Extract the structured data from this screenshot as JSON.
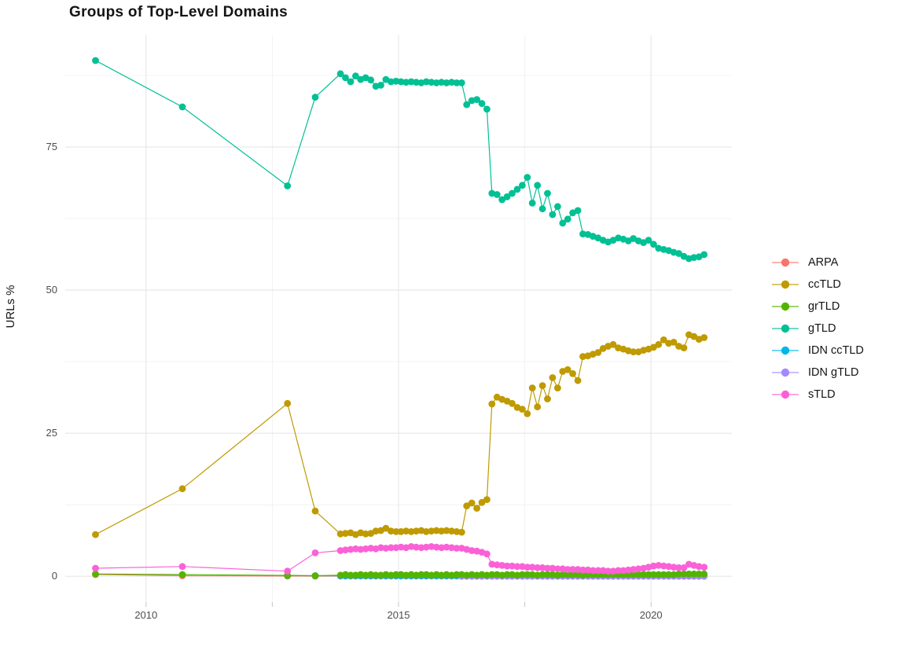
{
  "title": "Groups of Top-Level Domains",
  "chart_data": {
    "type": "line",
    "title": "Groups of Top-Level Domains",
    "xlabel": "",
    "ylabel": "URLs %",
    "grid": true,
    "legend_position": "right",
    "x_domain": [
      2008.4,
      2021.6
    ],
    "y_domain": [
      -4.5,
      94.5
    ],
    "x_ticks_major": [
      2010,
      2015,
      2020
    ],
    "x_tick_labels": [
      "2010",
      "2015",
      "2020"
    ],
    "x_ticks_minor": [
      2012.5,
      2017.5
    ],
    "y_ticks_major": [
      0,
      25,
      50,
      75
    ],
    "y_tick_labels": [
      "0",
      "25",
      "50",
      "75"
    ],
    "y_ticks_minor": [
      12.5,
      37.5,
      62.5,
      87.5
    ],
    "draw_order": [
      "ARPA",
      "IDN ccTLD",
      "IDN gTLD",
      "grTLD",
      "ccTLD",
      "gTLD",
      "sTLD"
    ],
    "series": [
      {
        "label": "ARPA",
        "color": "#F8766D",
        "points": [
          [
            2009.0,
            0.3
          ],
          [
            2010.72,
            0.1
          ],
          [
            2012.8,
            0.05
          ],
          [
            2013.35,
            0.03
          ]
        ],
        "dense": {
          "x_start": 2013.85,
          "x_step": 0.1,
          "values": [
            0.05,
            0.05,
            0.05,
            0.05,
            0.05,
            0.05,
            0.05,
            0.05,
            0.05,
            0.05,
            0.05,
            0.05,
            0.05,
            0.05,
            0.05,
            0.05,
            0.05,
            0.05,
            0.05,
            0.05,
            0.05,
            0.05,
            0.05,
            0.05,
            0.05,
            0.05,
            0.05,
            0.05,
            0.05,
            0.05,
            0.05,
            0.05,
            0.05,
            0.05,
            0.05,
            0.05,
            0.05,
            0.05,
            0.05,
            0.05,
            0.05,
            0.05,
            0.05,
            0.05,
            0.05,
            0.05,
            0.05,
            0.05,
            0.05,
            0.05,
            0.05,
            0.05,
            0.05,
            0.05,
            0.05,
            0.05,
            0.05,
            0.05,
            0.05,
            0.05,
            0.05,
            0.05,
            0.05,
            0.05,
            0.05,
            0.05,
            0.05,
            0.05,
            0.05,
            0.05,
            0.05,
            0.05,
            0.05
          ]
        }
      },
      {
        "label": "ccTLD",
        "color": "#BF9A00",
        "points": [
          [
            2009.0,
            7.3
          ],
          [
            2010.72,
            15.3
          ],
          [
            2012.8,
            30.2
          ],
          [
            2013.35,
            11.4
          ]
        ],
        "dense": {
          "x_start": 2013.85,
          "x_step": 0.1,
          "values": [
            7.4,
            7.5,
            7.6,
            7.3,
            7.6,
            7.4,
            7.5,
            7.9,
            8.0,
            8.4,
            7.9,
            7.8,
            7.8,
            7.9,
            7.8,
            7.9,
            8.0,
            7.8,
            7.9,
            8.0,
            7.9,
            8.0,
            7.9,
            7.8,
            7.7,
            12.3,
            12.8,
            11.9,
            12.9,
            13.4,
            30.1,
            31.3,
            30.9,
            30.6,
            30.2,
            29.5,
            29.2,
            28.4,
            32.9,
            29.6,
            33.3,
            31.0,
            34.7,
            32.9,
            35.8,
            36.1,
            35.4,
            34.2,
            38.4,
            38.5,
            38.8,
            39.1,
            39.8,
            40.2,
            40.5,
            39.9,
            39.7,
            39.4,
            39.2,
            39.2,
            39.5,
            39.7,
            40.0,
            40.5,
            41.3,
            40.7,
            40.9,
            40.2,
            39.9,
            42.2,
            41.9,
            41.4,
            41.7
          ]
        }
      },
      {
        "label": "grTLD",
        "color": "#53B400",
        "points": [
          [
            2009.0,
            0.4
          ],
          [
            2010.72,
            0.3
          ],
          [
            2012.8,
            0.15
          ],
          [
            2013.35,
            0.1
          ]
        ],
        "dense": {
          "x_start": 2013.85,
          "x_step": 0.1,
          "values": [
            0.2,
            0.3,
            0.2,
            0.2,
            0.3,
            0.2,
            0.3,
            0.2,
            0.2,
            0.3,
            0.2,
            0.3,
            0.3,
            0.2,
            0.3,
            0.2,
            0.3,
            0.3,
            0.2,
            0.3,
            0.2,
            0.3,
            0.2,
            0.3,
            0.3,
            0.2,
            0.3,
            0.2,
            0.3,
            0.2,
            0.3,
            0.3,
            0.2,
            0.3,
            0.3,
            0.2,
            0.3,
            0.3,
            0.3,
            0.2,
            0.3,
            0.3,
            0.3,
            0.2,
            0.3,
            0.3,
            0.3,
            0.3,
            0.2,
            0.3,
            0.3,
            0.3,
            0.3,
            0.3,
            0.3,
            0.3,
            0.3,
            0.3,
            0.3,
            0.3,
            0.3,
            0.3,
            0.3,
            0.3,
            0.3,
            0.3,
            0.3,
            0.4,
            0.4,
            0.4,
            0.4,
            0.4,
            0.4
          ]
        }
      },
      {
        "label": "gTLD",
        "color": "#00C094",
        "points": [
          [
            2009.0,
            90.1
          ],
          [
            2010.72,
            82.0
          ],
          [
            2012.8,
            68.2
          ],
          [
            2013.35,
            83.7
          ]
        ],
        "dense": {
          "x_start": 2013.85,
          "x_step": 0.1,
          "values": [
            87.8,
            87.1,
            86.4,
            87.4,
            86.8,
            87.1,
            86.7,
            85.6,
            85.8,
            86.8,
            86.4,
            86.5,
            86.4,
            86.3,
            86.4,
            86.3,
            86.2,
            86.4,
            86.3,
            86.2,
            86.3,
            86.2,
            86.3,
            86.2,
            86.2,
            82.4,
            83.1,
            83.3,
            82.6,
            81.6,
            66.9,
            66.7,
            65.8,
            66.3,
            66.9,
            67.6,
            68.3,
            69.7,
            65.2,
            68.3,
            64.2,
            66.9,
            63.2,
            64.6,
            61.7,
            62.4,
            63.5,
            63.9,
            59.8,
            59.7,
            59.4,
            59.1,
            58.7,
            58.4,
            58.7,
            59.1,
            58.9,
            58.6,
            59.0,
            58.6,
            58.3,
            58.7,
            58.0,
            57.3,
            57.1,
            56.9,
            56.6,
            56.4,
            55.9,
            55.5,
            55.7,
            55.8,
            56.2
          ]
        }
      },
      {
        "label": "IDN ccTLD",
        "color": "#00B6EB",
        "points": [
          [
            2012.8,
            0.12
          ],
          [
            2013.35,
            0.1
          ]
        ],
        "dense": {
          "x_start": 2013.85,
          "x_step": 0.1,
          "values": [
            0.1,
            0.1,
            0.1,
            0.1,
            0.1,
            0.1,
            0.1,
            0.1,
            0.1,
            0.1,
            0.1,
            0.1,
            0.1,
            0.1,
            0.1,
            0.1,
            0.1,
            0.1,
            0.1,
            0.1,
            0.1,
            0.1,
            0.1,
            0.1,
            0.1,
            0.1,
            0.1,
            0.1,
            0.1,
            0.1,
            0.1,
            0.1,
            0.1,
            0.1,
            0.1,
            0.1,
            0.1,
            0.1,
            0.1,
            0.1,
            0.1,
            0.1,
            0.1,
            0.1,
            0.1,
            0.1,
            0.1,
            0.1,
            0.1,
            0.1,
            0.1,
            0.1,
            0.1,
            0.1,
            0.1,
            0.1,
            0.1,
            0.1,
            0.1,
            0.1,
            0.1,
            0.1,
            0.1,
            0.1,
            0.1,
            0.1,
            0.1,
            0.1,
            0.1,
            0.1,
            0.1,
            0.1,
            0.1
          ]
        }
      },
      {
        "label": "IDN gTLD",
        "color": "#A58AFF",
        "points": [],
        "dense": {
          "x_start": 2016.25,
          "x_step": 0.1,
          "values": [
            0.0,
            0.0,
            0.0,
            0.0,
            0.0,
            0.0,
            0.0,
            0.0,
            0.0,
            0.0,
            0.0,
            0.0,
            0.0,
            0.0,
            0.0,
            0.0,
            0.0,
            0.0,
            0.0,
            0.0,
            0.0,
            0.0,
            0.0,
            0.0,
            0.0,
            0.0,
            0.0,
            0.0,
            0.0,
            0.0,
            0.0,
            0.0,
            0.0,
            0.0,
            0.0,
            0.0,
            0.0,
            0.0,
            0.0,
            0.0,
            0.0,
            0.0,
            0.0,
            0.0,
            0.0,
            0.0,
            0.0,
            0.0,
            0.0
          ]
        }
      },
      {
        "label": "sTLD",
        "color": "#FB61D7",
        "points": [
          [
            2009.0,
            1.4
          ],
          [
            2010.72,
            1.7
          ],
          [
            2012.8,
            0.9
          ],
          [
            2013.35,
            4.1
          ]
        ],
        "dense": {
          "x_start": 2013.85,
          "x_step": 0.1,
          "values": [
            4.5,
            4.6,
            4.7,
            4.8,
            4.7,
            4.8,
            4.9,
            4.8,
            5.0,
            4.9,
            5.0,
            5.0,
            5.1,
            5.0,
            5.2,
            5.1,
            5.0,
            5.1,
            5.2,
            5.1,
            5.0,
            5.1,
            5.0,
            4.9,
            4.9,
            4.7,
            4.5,
            4.4,
            4.2,
            3.9,
            2.1,
            2.0,
            1.9,
            1.8,
            1.8,
            1.7,
            1.7,
            1.6,
            1.6,
            1.5,
            1.5,
            1.4,
            1.4,
            1.3,
            1.3,
            1.2,
            1.2,
            1.2,
            1.1,
            1.1,
            1.0,
            1.0,
            1.0,
            0.9,
            0.9,
            1.0,
            1.0,
            1.1,
            1.2,
            1.3,
            1.4,
            1.6,
            1.8,
            1.9,
            1.8,
            1.7,
            1.6,
            1.5,
            1.5,
            2.1,
            1.9,
            1.7,
            1.6
          ]
        }
      }
    ],
    "style": {
      "grid_major_color": "#e6e6e6",
      "grid_minor_color": "#f0f0f0",
      "tick_mark_color": "#c6c6c6",
      "point_radius": 4.4,
      "line_width": 1.2
    }
  }
}
